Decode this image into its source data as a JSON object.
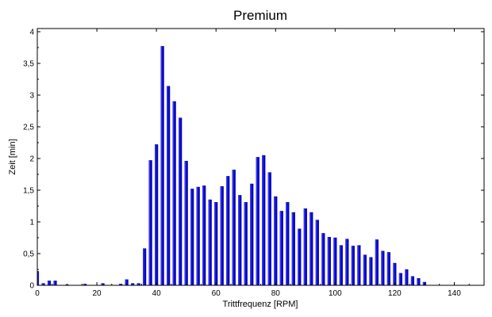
{
  "chart_data": {
    "type": "bar",
    "title": "Premium",
    "xlabel": "Trittfrequenz [RPM]",
    "ylabel": "Zeit [min]",
    "xlim": [
      0,
      150
    ],
    "ylim": [
      0,
      4.05
    ],
    "x_ticks": [
      0,
      20,
      40,
      60,
      80,
      100,
      120,
      140
    ],
    "x_tick_labels": [
      "0",
      "20",
      "40",
      "60",
      "80",
      "100",
      "120",
      "140"
    ],
    "y_ticks": [
      0,
      0.5,
      1,
      1.5,
      2,
      2.5,
      3,
      3.5,
      4
    ],
    "y_tick_labels": [
      "0",
      "0,5",
      "1",
      "1,5",
      "2",
      "2,5",
      "3",
      "3,5",
      "4"
    ],
    "grid": false,
    "bar_color": "#1010ee",
    "bar_highlight": "#7070ff",
    "bar_shadow": "#0000a0",
    "x": [
      0,
      2,
      4,
      6,
      10,
      16,
      22,
      28,
      30,
      32,
      34,
      36,
      38,
      40,
      42,
      44,
      46,
      48,
      50,
      52,
      54,
      56,
      58,
      60,
      62,
      64,
      66,
      68,
      70,
      72,
      74,
      76,
      78,
      80,
      82,
      84,
      86,
      88,
      90,
      92,
      94,
      96,
      98,
      100,
      102,
      104,
      106,
      108,
      110,
      112,
      114,
      116,
      118,
      120,
      122,
      124,
      126,
      128,
      130
    ],
    "values": [
      0.22,
      0.03,
      0.07,
      0.07,
      0.01,
      0.02,
      0.03,
      0.02,
      0.09,
      0.03,
      0.03,
      0.58,
      1.97,
      2.22,
      3.77,
      3.14,
      2.9,
      2.64,
      1.96,
      1.52,
      1.55,
      1.57,
      1.35,
      1.31,
      1.56,
      1.72,
      1.82,
      1.42,
      1.31,
      1.6,
      2.02,
      2.05,
      1.78,
      1.4,
      1.17,
      1.31,
      1.15,
      0.89,
      1.21,
      1.15,
      1.03,
      0.82,
      0.76,
      0.75,
      0.63,
      0.73,
      0.62,
      0.63,
      0.48,
      0.44,
      0.72,
      0.54,
      0.52,
      0.35,
      0.19,
      0.25,
      0.14,
      0.11,
      0.05
    ]
  }
}
